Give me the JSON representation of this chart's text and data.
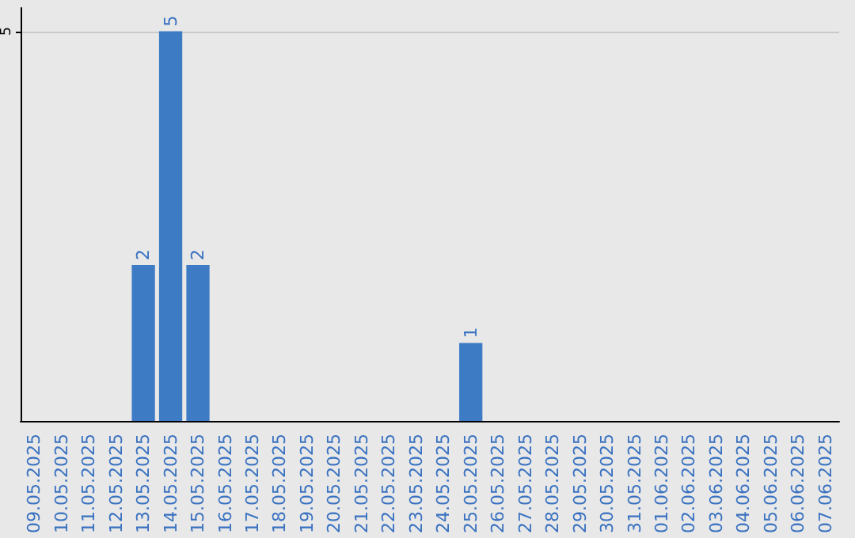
{
  "chart_data": {
    "type": "bar",
    "categories": [
      "09.05.2025",
      "10.05.2025",
      "11.05.2025",
      "12.05.2025",
      "13.05.2025",
      "14.05.2025",
      "15.05.2025",
      "16.05.2025",
      "17.05.2025",
      "18.05.2025",
      "19.05.2025",
      "20.05.2025",
      "21.05.2025",
      "22.05.2025",
      "23.05.2025",
      "24.05.2025",
      "25.05.2025",
      "26.05.2025",
      "27.05.2025",
      "28.05.2025",
      "29.05.2025",
      "30.05.2025",
      "31.05.2025",
      "01.06.2025",
      "02.06.2025",
      "03.06.2025",
      "04.06.2025",
      "05.06.2025",
      "06.06.2025",
      "07.06.2025"
    ],
    "values": [
      0,
      0,
      0,
      0,
      2,
      5,
      2,
      0,
      0,
      0,
      0,
      0,
      0,
      0,
      0,
      0,
      1,
      0,
      0,
      0,
      0,
      0,
      0,
      0,
      0,
      0,
      0,
      0,
      0,
      0
    ],
    "color": "#3d7cc4",
    "value_labels": [
      null,
      null,
      null,
      null,
      "2",
      "5",
      "2",
      null,
      null,
      null,
      null,
      null,
      null,
      null,
      null,
      null,
      "1",
      null,
      null,
      null,
      null,
      null,
      null,
      null,
      null,
      null,
      null,
      null,
      null,
      null
    ],
    "ylim": [
      0,
      5.3
    ],
    "yticks": [
      5
    ],
    "grid": "y"
  }
}
